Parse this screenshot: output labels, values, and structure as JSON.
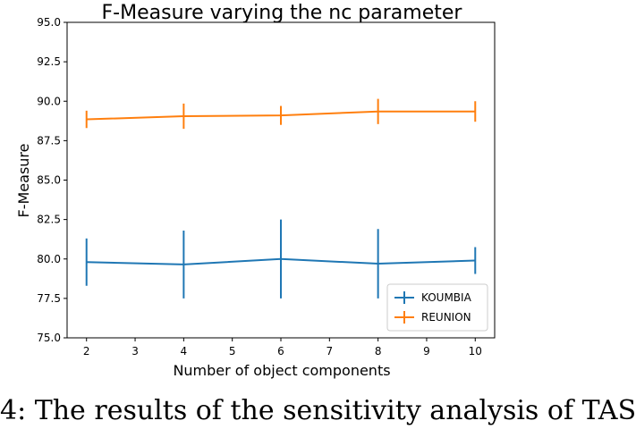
{
  "chart_data": {
    "type": "line",
    "title": "F-Measure varying the nc parameter",
    "xlabel": "Number of object components",
    "ylabel": "F-Measure",
    "x": [
      2,
      4,
      6,
      8,
      10
    ],
    "xticks": [
      2,
      3,
      4,
      5,
      6,
      7,
      8,
      9,
      10
    ],
    "yticks": [
      75.0,
      77.5,
      80.0,
      82.5,
      85.0,
      87.5,
      90.0,
      92.5,
      95.0
    ],
    "xlim": [
      1.6,
      10.4
    ],
    "ylim": [
      75.0,
      95.0
    ],
    "grid": false,
    "legend_position": "bottom-right",
    "series": [
      {
        "name": "KOUMBIA",
        "color": "#1f77b4",
        "values": [
          79.8,
          79.65,
          80.0,
          79.7,
          79.9
        ],
        "yerr": [
          1.5,
          2.15,
          2.5,
          2.2,
          0.85
        ]
      },
      {
        "name": "REUNION",
        "color": "#ff7f0e",
        "values": [
          88.85,
          89.05,
          89.1,
          89.35,
          89.35
        ],
        "yerr": [
          0.55,
          0.8,
          0.6,
          0.8,
          0.65
        ]
      }
    ]
  },
  "caption": "4: The results of the sensitivity analysis of TAS"
}
